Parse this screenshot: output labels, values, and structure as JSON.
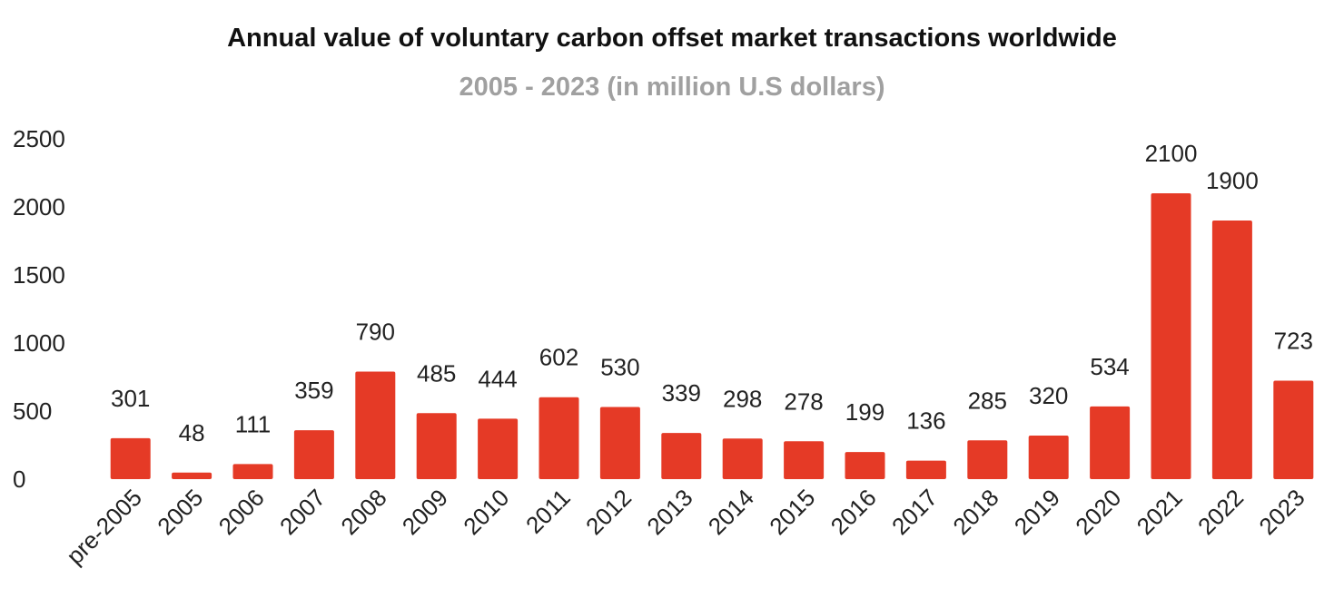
{
  "chart_data": {
    "type": "bar",
    "title": "Annual value of voluntary carbon offset market transactions worldwide",
    "subtitle": "2005 - 2023 (in million U.S dollars)",
    "xlabel": "",
    "ylabel": "",
    "categories": [
      "pre-2005",
      "2005",
      "2006",
      "2007",
      "2008",
      "2009",
      "2010",
      "2011",
      "2012",
      "2013",
      "2014",
      "2015",
      "2016",
      "2017",
      "2018",
      "2019",
      "2020",
      "2021",
      "2022",
      "2023"
    ],
    "values": [
      301,
      48,
      111,
      359,
      790,
      485,
      444,
      602,
      530,
      339,
      298,
      278,
      199,
      136,
      285,
      320,
      534,
      2100,
      1900,
      723
    ],
    "ylim": [
      0,
      2500
    ],
    "yticks": [
      0,
      500,
      1000,
      1500,
      2000,
      2500
    ],
    "grid": false,
    "legend": "none",
    "bar_color": "#e53a26"
  }
}
